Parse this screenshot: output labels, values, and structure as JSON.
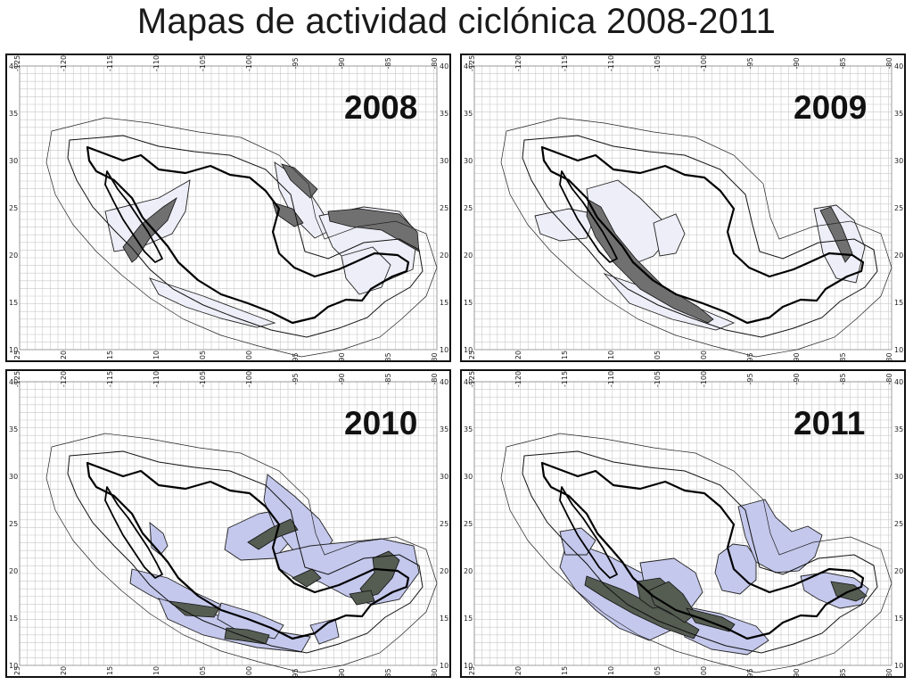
{
  "title": "Mapas de actividad ciclónica 2008-2011",
  "panels": [
    {
      "year": "2008"
    },
    {
      "year": "2009"
    },
    {
      "year": "2010"
    },
    {
      "year": "2011"
    }
  ],
  "axes": {
    "x_ticks": [
      "-125",
      "-120",
      "-115",
      "-110",
      "-105",
      "-100",
      "-95",
      "-90",
      "-85",
      "-80"
    ],
    "y_ticks": [
      "40",
      "35",
      "30",
      "25",
      "20",
      "15",
      "10"
    ]
  },
  "colors": {
    "grid": "#c8c8c8",
    "outline": "#111111",
    "fill_light_2008_2009": "#eeeef8",
    "fill_dark_2008_2009": "#707070",
    "fill_light_2010_2011": "#c4c8ec",
    "fill_dark_2010_2011": "#555c52"
  }
}
